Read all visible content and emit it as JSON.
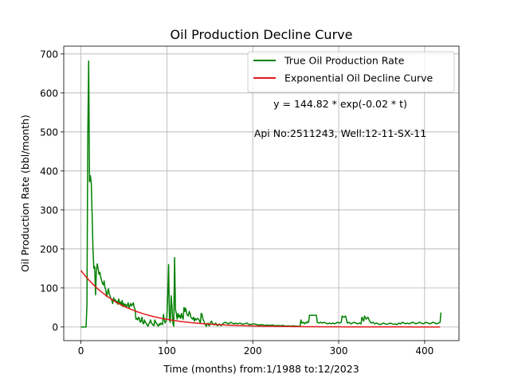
{
  "chart_data": {
    "type": "line",
    "title": "Oil Production Decline Curve",
    "xlabel": "Time (months) from:1/1988 to:12/2023",
    "ylabel": "Oil Production Rate (bbl/month)",
    "xlim": [
      -20,
      440
    ],
    "ylim": [
      -35,
      720
    ],
    "xticks": [
      0,
      100,
      200,
      300,
      400
    ],
    "yticks": [
      0,
      100,
      200,
      300,
      400,
      500,
      600,
      700
    ],
    "grid": true,
    "legend_position": "top-right",
    "annotations": [
      "y = 144.82 * exp(-0.02 * t)",
      "Api No:2511243, Well:12-11-SX-11"
    ],
    "series": [
      {
        "name": "True Oil Production Rate",
        "color": "#008000",
        "points": [
          [
            0,
            0
          ],
          [
            6,
            0
          ],
          [
            7,
            55
          ],
          [
            8,
            490
          ],
          [
            9,
            682
          ],
          [
            10,
            372
          ],
          [
            11,
            388
          ],
          [
            12,
            370
          ],
          [
            13,
            290
          ],
          [
            14,
            200
          ],
          [
            15,
            150
          ],
          [
            16,
            155
          ],
          [
            17,
            82
          ],
          [
            18,
            145
          ],
          [
            19,
            162
          ],
          [
            20,
            150
          ],
          [
            21,
            135
          ],
          [
            22,
            140
          ],
          [
            23,
            128
          ],
          [
            24,
            120
          ],
          [
            25,
            112
          ],
          [
            26,
            108
          ],
          [
            27,
            118
          ],
          [
            28,
            100
          ],
          [
            29,
            95
          ],
          [
            30,
            78
          ],
          [
            31,
            88
          ],
          [
            32,
            98
          ],
          [
            33,
            85
          ],
          [
            34,
            78
          ],
          [
            35,
            72
          ],
          [
            36,
            68
          ],
          [
            37,
            60
          ],
          [
            38,
            75
          ],
          [
            39,
            68
          ],
          [
            40,
            70
          ],
          [
            41,
            62
          ],
          [
            42,
            66
          ],
          [
            43,
            58
          ],
          [
            44,
            72
          ],
          [
            45,
            60
          ],
          [
            46,
            64
          ],
          [
            47,
            55
          ],
          [
            48,
            68
          ],
          [
            49,
            52
          ],
          [
            50,
            60
          ],
          [
            51,
            55
          ],
          [
            52,
            58
          ],
          [
            53,
            50
          ],
          [
            54,
            56
          ],
          [
            55,
            62
          ],
          [
            56,
            48
          ],
          [
            57,
            55
          ],
          [
            58,
            60
          ],
          [
            59,
            54
          ],
          [
            60,
            58
          ],
          [
            61,
            62
          ],
          [
            62,
            50
          ],
          [
            63,
            45
          ],
          [
            64,
            20
          ],
          [
            65,
            22
          ],
          [
            66,
            18
          ],
          [
            67,
            25
          ],
          [
            68,
            22
          ],
          [
            69,
            12
          ],
          [
            70,
            15
          ],
          [
            71,
            25
          ],
          [
            72,
            10
          ],
          [
            73,
            8
          ],
          [
            74,
            18
          ],
          [
            75,
            12
          ],
          [
            76,
            10
          ],
          [
            77,
            5
          ],
          [
            78,
            2
          ],
          [
            79,
            8
          ],
          [
            80,
            12
          ],
          [
            81,
            18
          ],
          [
            82,
            10
          ],
          [
            83,
            8
          ],
          [
            84,
            5
          ],
          [
            85,
            3
          ],
          [
            86,
            18
          ],
          [
            87,
            12
          ],
          [
            88,
            10
          ],
          [
            89,
            5
          ],
          [
            90,
            2
          ],
          [
            91,
            8
          ],
          [
            92,
            5
          ],
          [
            93,
            10
          ],
          [
            94,
            8
          ],
          [
            95,
            6
          ],
          [
            96,
            32
          ],
          [
            97,
            18
          ],
          [
            98,
            10
          ],
          [
            99,
            15
          ],
          [
            100,
            25
          ],
          [
            101,
            80
          ],
          [
            102,
            160
          ],
          [
            103,
            20
          ],
          [
            104,
            12
          ],
          [
            105,
            80
          ],
          [
            106,
            50
          ],
          [
            107,
            10
          ],
          [
            108,
            2
          ],
          [
            109,
            178
          ],
          [
            110,
            45
          ],
          [
            111,
            35
          ],
          [
            112,
            20
          ],
          [
            113,
            35
          ],
          [
            114,
            25
          ],
          [
            115,
            30
          ],
          [
            116,
            22
          ],
          [
            117,
            35
          ],
          [
            118,
            25
          ],
          [
            119,
            20
          ],
          [
            120,
            50
          ],
          [
            121,
            40
          ],
          [
            122,
            48
          ],
          [
            123,
            35
          ],
          [
            124,
            30
          ],
          [
            125,
            28
          ],
          [
            126,
            40
          ],
          [
            127,
            35
          ],
          [
            128,
            25
          ],
          [
            129,
            22
          ],
          [
            130,
            20
          ],
          [
            131,
            25
          ],
          [
            132,
            15
          ],
          [
            133,
            22
          ],
          [
            134,
            18
          ],
          [
            135,
            20
          ],
          [
            136,
            22
          ],
          [
            137,
            20
          ],
          [
            138,
            15
          ],
          [
            139,
            10
          ],
          [
            140,
            35
          ],
          [
            141,
            32
          ],
          [
            142,
            20
          ],
          [
            143,
            15
          ],
          [
            144,
            10
          ],
          [
            145,
            5
          ],
          [
            146,
            2
          ],
          [
            147,
            8
          ],
          [
            148,
            10
          ],
          [
            149,
            3
          ],
          [
            150,
            5
          ],
          [
            151,
            12
          ],
          [
            152,
            15
          ],
          [
            153,
            10
          ],
          [
            154,
            8
          ],
          [
            155,
            5
          ],
          [
            156,
            8
          ],
          [
            157,
            10
          ],
          [
            158,
            5
          ],
          [
            159,
            3
          ],
          [
            160,
            5
          ],
          [
            161,
            8
          ],
          [
            162,
            6
          ],
          [
            163,
            3
          ],
          [
            164,
            5
          ],
          [
            165,
            8
          ],
          [
            166,
            10
          ],
          [
            168,
            12
          ],
          [
            170,
            10
          ],
          [
            172,
            8
          ],
          [
            174,
            12
          ],
          [
            176,
            10
          ],
          [
            178,
            8
          ],
          [
            180,
            10
          ],
          [
            182,
            8
          ],
          [
            185,
            10
          ],
          [
            188,
            7
          ],
          [
            190,
            8
          ],
          [
            193,
            10
          ],
          [
            196,
            6
          ],
          [
            199,
            7
          ],
          [
            202,
            8
          ],
          [
            205,
            6
          ],
          [
            208,
            5
          ],
          [
            211,
            6
          ],
          [
            214,
            4
          ],
          [
            217,
            5
          ],
          [
            220,
            4
          ],
          [
            223,
            5
          ],
          [
            226,
            3
          ],
          [
            229,
            4
          ],
          [
            232,
            3
          ],
          [
            235,
            4
          ],
          [
            238,
            2
          ],
          [
            241,
            3
          ],
          [
            244,
            2
          ],
          [
            247,
            3
          ],
          [
            250,
            2
          ],
          [
            253,
            2
          ],
          [
            255,
            1
          ],
          [
            256,
            18
          ],
          [
            257,
            10
          ],
          [
            259,
            12
          ],
          [
            260,
            8
          ],
          [
            261,
            10
          ],
          [
            262,
            12
          ],
          [
            263,
            10
          ],
          [
            264,
            14
          ],
          [
            265,
            12
          ],
          [
            266,
            30
          ],
          [
            268,
            30
          ],
          [
            270,
            30
          ],
          [
            272,
            30
          ],
          [
            274,
            30
          ],
          [
            275,
            12
          ],
          [
            277,
            10
          ],
          [
            279,
            12
          ],
          [
            281,
            10
          ],
          [
            283,
            12
          ],
          [
            285,
            10
          ],
          [
            287,
            8
          ],
          [
            289,
            10
          ],
          [
            291,
            8
          ],
          [
            293,
            10
          ],
          [
            295,
            8
          ],
          [
            297,
            10
          ],
          [
            299,
            12
          ],
          [
            301,
            10
          ],
          [
            303,
            12
          ],
          [
            304,
            28
          ],
          [
            306,
            25
          ],
          [
            308,
            28
          ],
          [
            310,
            10
          ],
          [
            312,
            12
          ],
          [
            314,
            8
          ],
          [
            316,
            10
          ],
          [
            318,
            12
          ],
          [
            320,
            10
          ],
          [
            322,
            8
          ],
          [
            324,
            10
          ],
          [
            326,
            8
          ],
          [
            327,
            25
          ],
          [
            329,
            15
          ],
          [
            330,
            28
          ],
          [
            332,
            20
          ],
          [
            334,
            25
          ],
          [
            336,
            15
          ],
          [
            338,
            10
          ],
          [
            340,
            12
          ],
          [
            342,
            8
          ],
          [
            344,
            10
          ],
          [
            346,
            8
          ],
          [
            348,
            6
          ],
          [
            350,
            8
          ],
          [
            352,
            10
          ],
          [
            354,
            8
          ],
          [
            356,
            7
          ],
          [
            358,
            8
          ],
          [
            360,
            10
          ],
          [
            362,
            8
          ],
          [
            364,
            7
          ],
          [
            366,
            8
          ],
          [
            368,
            6
          ],
          [
            370,
            10
          ],
          [
            372,
            8
          ],
          [
            374,
            12
          ],
          [
            376,
            10
          ],
          [
            378,
            8
          ],
          [
            380,
            10
          ],
          [
            382,
            8
          ],
          [
            384,
            10
          ],
          [
            386,
            12
          ],
          [
            388,
            10
          ],
          [
            390,
            8
          ],
          [
            392,
            10
          ],
          [
            394,
            12
          ],
          [
            396,
            10
          ],
          [
            398,
            8
          ],
          [
            400,
            10
          ],
          [
            402,
            12
          ],
          [
            404,
            10
          ],
          [
            406,
            8
          ],
          [
            408,
            10
          ],
          [
            410,
            12
          ],
          [
            412,
            10
          ],
          [
            414,
            8
          ],
          [
            416,
            10
          ],
          [
            418,
            12
          ],
          [
            419,
            37
          ]
        ]
      },
      {
        "name": "Exponential Oil Decline Curve",
        "color": "#e31a1c",
        "equation": {
          "a": 144.82,
          "b": -0.02
        },
        "x_range": [
          0,
          419
        ]
      }
    ]
  }
}
